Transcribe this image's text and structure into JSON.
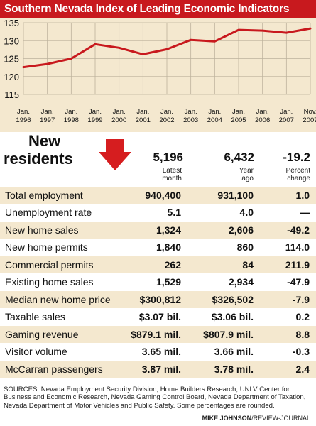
{
  "title": "Southern Nevada Index of Leading Economic Indicators",
  "chart_data": {
    "type": "line",
    "y_ticks": [
      "135",
      "130",
      "125",
      "120",
      "115"
    ],
    "ylim": [
      115,
      135
    ],
    "x_labels": [
      [
        "Jan.",
        "1996"
      ],
      [
        "Jan.",
        "1997"
      ],
      [
        "Jan.",
        "1998"
      ],
      [
        "Jan.",
        "1999"
      ],
      [
        "Jan.",
        "2000"
      ],
      [
        "Jan.",
        "2001"
      ],
      [
        "Jan.",
        "2002"
      ],
      [
        "Jan.",
        "2003"
      ],
      [
        "Jan.",
        "2004"
      ],
      [
        "Jan.",
        "2005"
      ],
      [
        "Jan.",
        "2006"
      ],
      [
        "Jan.",
        "2007"
      ],
      [
        "Nov.",
        "2007"
      ]
    ],
    "x": [
      "Jan. 1996",
      "Jan. 1997",
      "Jan. 1998",
      "Jan. 1999",
      "Jan. 2000",
      "Jan. 2001",
      "Jan. 2002",
      "Jan. 2003",
      "Jan. 2004",
      "Jan. 2005",
      "Jan. 2006",
      "Jan. 2007",
      "Nov. 2007"
    ],
    "values": [
      122.6,
      123.5,
      125.0,
      129.0,
      128.0,
      126.2,
      127.6,
      130.2,
      129.8,
      133.0,
      132.8,
      132.2,
      133.4
    ],
    "grid": true,
    "line_color": "#c8191e"
  },
  "headline": {
    "label_line1": "New",
    "label_line2": "residents",
    "arrow": "down-arrow",
    "latest": "5,196",
    "latest_sub": "Latest\nmonth",
    "year_ago": "6,432",
    "year_ago_sub": "Year\nago",
    "change": "-19.2",
    "change_sub": "Percent\nchange"
  },
  "table": {
    "rows": [
      {
        "label": "Total employment",
        "latest": "940,400",
        "year_ago": "931,100",
        "change": "1.0"
      },
      {
        "label": "Unemployment rate",
        "latest": "5.1",
        "year_ago": "4.0",
        "change": "—"
      },
      {
        "label": "New home sales",
        "latest": "1,324",
        "year_ago": "2,606",
        "change": "-49.2"
      },
      {
        "label": "New home permits",
        "latest": "1,840",
        "year_ago": "860",
        "change": "114.0"
      },
      {
        "label": "Commercial permits",
        "latest": "262",
        "year_ago": "84",
        "change": "211.9"
      },
      {
        "label": "Existing home sales",
        "latest": "1,529",
        "year_ago": "2,934",
        "change": "-47.9"
      },
      {
        "label": "Median new home price",
        "latest": "$300,812",
        "year_ago": "$326,502",
        "change": "-7.9"
      },
      {
        "label": "Taxable sales",
        "latest": "$3.07 bil.",
        "year_ago": "$3.06 bil.",
        "change": "0.2"
      },
      {
        "label": "Gaming revenue",
        "latest": "$879.1 mil.",
        "year_ago": "$807.9 mil.",
        "change": "8.8"
      },
      {
        "label": "Visitor volume",
        "latest": "3.65 mil.",
        "year_ago": "3.66 mil.",
        "change": "-0.3"
      },
      {
        "label": "McCarran passengers",
        "latest": "3.87 mil.",
        "year_ago": "3.78 mil.",
        "change": "2.4"
      }
    ]
  },
  "sources": "SOURCES: Nevada Employment Security Division, Home Builders Research, UNLV Center for Business and Economic Research, Nevada Gaming Control Board, Nevada Department of Taxation, Nevada Department of Motor Vehicles and Public Safety. Some percentages are rounded.",
  "credit_name": "MIKE JOHNSON",
  "credit_org": "/REVIEW-JOURNAL"
}
